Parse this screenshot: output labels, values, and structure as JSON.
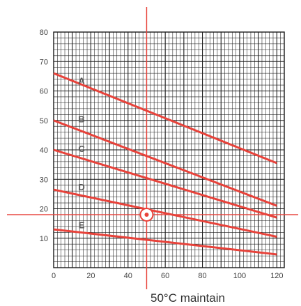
{
  "chart_data": {
    "type": "line",
    "x_ticks": [
      "0",
      "20",
      "40",
      "60",
      "80",
      "100",
      "120"
    ],
    "y_ticks": [
      "10",
      "20",
      "30",
      "40",
      "50",
      "60",
      "70",
      "80"
    ],
    "xlim": [
      0,
      124
    ],
    "ylim": [
      0,
      80
    ],
    "grid": true,
    "series": [
      {
        "name": "A",
        "label_at": [
          15,
          63.5
        ],
        "x": [
          0,
          120
        ],
        "y": [
          66,
          35.5
        ]
      },
      {
        "name": "B",
        "label_at": [
          15,
          50.5
        ],
        "x": [
          0,
          120
        ],
        "y": [
          50,
          21
        ]
      },
      {
        "name": "C",
        "label_at": [
          15,
          40.5
        ],
        "x": [
          0,
          120
        ],
        "y": [
          40,
          17
        ]
      },
      {
        "name": "D",
        "label_at": [
          15,
          27.5
        ],
        "x": [
          0,
          120
        ],
        "y": [
          26.5,
          10.5
        ]
      },
      {
        "name": "E",
        "label_at": [
          15,
          14.5
        ],
        "x": [
          0,
          120
        ],
        "y": [
          13,
          4.5
        ]
      }
    ],
    "reference": {
      "x": 50,
      "y": 18
    },
    "annotation": "50°C maintain",
    "colors": {
      "line": "#e8423a",
      "grid": "#1a1a1a",
      "text": "#444444"
    }
  }
}
